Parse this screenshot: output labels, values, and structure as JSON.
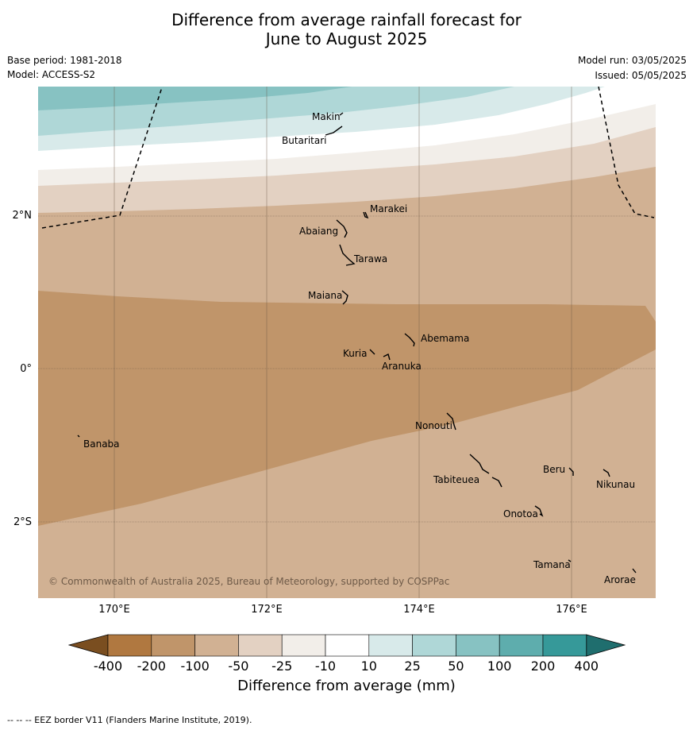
{
  "title_line1": "Difference from average rainfall forecast for",
  "title_line2": "June to August 2025",
  "base_period": "Base period: 1981-2018",
  "model": "Model: ACCESS-S2",
  "model_run": "Model run: 03/05/2025",
  "issued": "Issued: 05/05/2025",
  "copyright": "© Commonwealth of Australia 2025, Bureau of Meteorology, supported by COSPPac",
  "lat_ticks": [
    "2°N",
    "0°",
    "2°S"
  ],
  "lon_ticks": [
    "170°E",
    "172°E",
    "174°E",
    "176°E"
  ],
  "places": [
    "Makin",
    "Butaritari",
    "Marakei",
    "Abaiang",
    "Tarawa",
    "Maiana",
    "Abemama",
    "Kuria",
    "Aranuka",
    "Banaba",
    "Nonouti",
    "Beru",
    "Nikunau",
    "Tabiteuea",
    "Onotoa",
    "Tamana",
    "Arorae"
  ],
  "colorbar": {
    "ticks": [
      "-400",
      "-200",
      "-100",
      "-50",
      "-25",
      "-10",
      "10",
      "25",
      "50",
      "100",
      "200",
      "400"
    ],
    "colors": [
      "#7a4e20",
      "#b07840",
      "#c0956a",
      "#d1b193",
      "#e3d1c2",
      "#f2eee9",
      "#ffffff",
      "#d8eaea",
      "#afd7d7",
      "#87c2c2",
      "#5eadad",
      "#369999",
      "#1f6e6e"
    ],
    "label": "Difference from average (mm)"
  },
  "footer": "--  --  -- EEZ border V11 (Flanders Marine Institute, 2019)."
}
